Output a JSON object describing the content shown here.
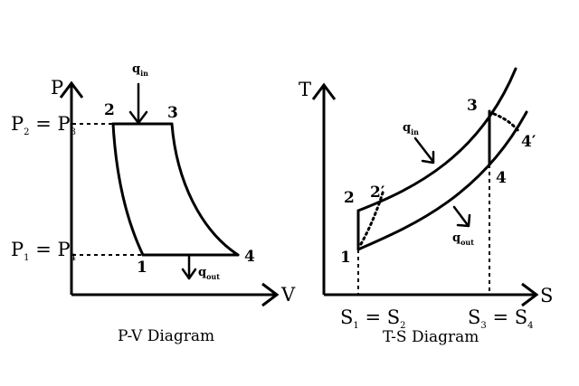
{
  "pv": {
    "axis_y": "P",
    "axis_x": "V",
    "p_high": {
      "base": "P",
      "sub1": "2",
      "eq": " = P",
      "sub2": "3"
    },
    "p_low": {
      "base": "P",
      "sub1": "1",
      "eq": " = P",
      "sub2": "4"
    },
    "points": {
      "p1": "1",
      "p2": "2",
      "p3": "3",
      "p4": "4"
    },
    "q_in": {
      "base": "q",
      "sub": "in"
    },
    "q_out": {
      "base": "q",
      "sub": "out"
    },
    "caption": "P-V Diagram"
  },
  "ts": {
    "axis_y": "T",
    "axis_x": "S",
    "s_left": {
      "base": "S",
      "sub1": "1",
      "eq": " = S",
      "sub2": "2"
    },
    "s_right": {
      "base": "S",
      "sub1": "3",
      "eq": " = S",
      "sub2": "4"
    },
    "points": {
      "p1": "1",
      "p2": "2",
      "p2p": "2′",
      "p3": "3",
      "p4": "4",
      "p4p": "4′"
    },
    "q_in": {
      "base": "q",
      "sub": "in"
    },
    "q_out": {
      "base": "q",
      "sub": "out"
    },
    "caption": "T-S Diagram"
  }
}
